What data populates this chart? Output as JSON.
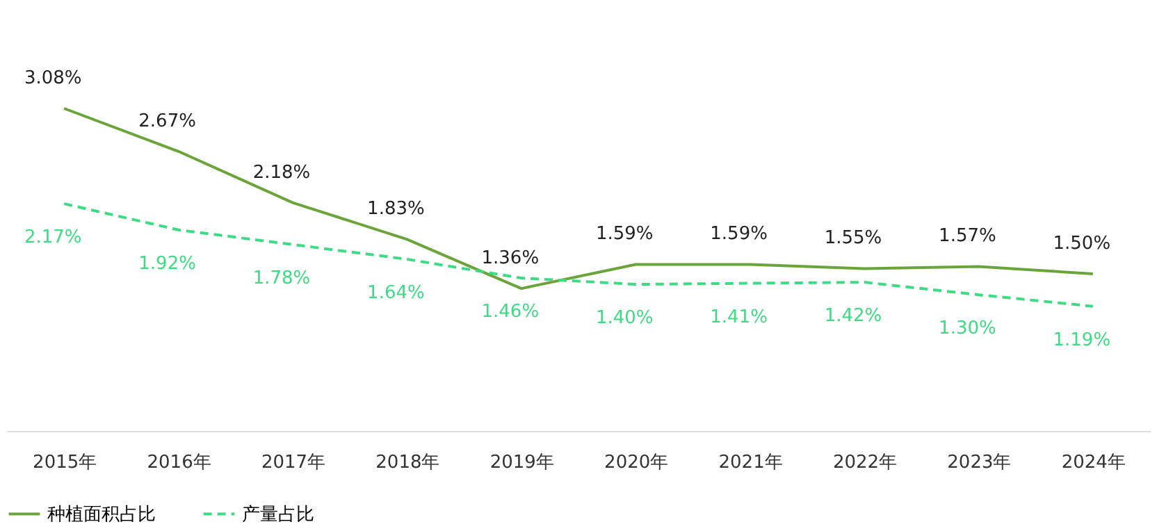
{
  "chart_data": {
    "type": "line",
    "categories": [
      "2015年",
      "2016年",
      "2017年",
      "2018年",
      "2019年",
      "2020年",
      "2021年",
      "2022年",
      "2023年",
      "2024年"
    ],
    "series": [
      {
        "name": "种植面积占比",
        "color": "#6ba43a",
        "line_style": "solid",
        "values": [
          3.08,
          2.67,
          2.18,
          1.83,
          1.36,
          1.59,
          1.59,
          1.55,
          1.57,
          1.5
        ],
        "value_labels": [
          "3.08%",
          "2.67%",
          "2.18%",
          "1.83%",
          "1.36%",
          "1.59%",
          "1.59%",
          "1.55%",
          "1.57%",
          "1.50%"
        ]
      },
      {
        "name": "产量占比",
        "color": "#3ddc84",
        "line_style": "dashed",
        "values": [
          2.17,
          1.92,
          1.78,
          1.64,
          1.46,
          1.4,
          1.41,
          1.42,
          1.3,
          1.19
        ],
        "value_labels": [
          "2.17%",
          "1.92%",
          "1.78%",
          "1.64%",
          "1.46%",
          "1.40%",
          "1.41%",
          "1.42%",
          "1.30%",
          "1.19%"
        ]
      }
    ],
    "grid": false,
    "legend": "bottom",
    "marker": "none",
    "tick_labels": "x"
  }
}
